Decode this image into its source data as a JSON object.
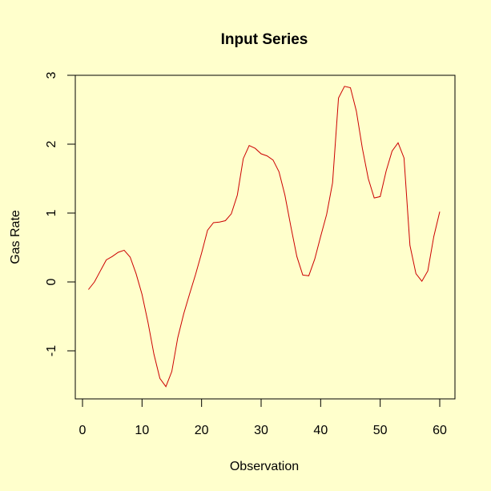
{
  "chart_data": {
    "type": "line",
    "title": "Input Series",
    "xlabel": "Observation",
    "ylabel": "Gas Rate",
    "xlim": [
      0,
      60
    ],
    "ylim": [
      -1.5,
      3
    ],
    "xticks": [
      0,
      10,
      20,
      30,
      40,
      50,
      60
    ],
    "yticks": [
      -1,
      0,
      1,
      2,
      3
    ],
    "xtick_labels": [
      "0",
      "10",
      "20",
      "30",
      "40",
      "50",
      "60"
    ],
    "ytick_labels": [
      "-1",
      "0",
      "1",
      "2",
      "3"
    ],
    "grid": false,
    "series": [
      {
        "color": "#cc0000",
        "x": [
          1,
          2,
          3,
          4,
          5,
          6,
          7,
          8,
          9,
          10,
          11,
          12,
          13,
          14,
          15,
          16,
          17,
          18,
          19,
          20,
          21,
          22,
          23,
          24,
          25,
          26,
          27,
          28,
          29,
          30,
          31,
          32,
          33,
          34,
          35,
          36,
          37,
          38,
          39,
          40,
          41,
          42,
          43,
          44,
          45,
          46,
          47,
          48,
          49,
          50,
          51,
          52,
          53,
          54,
          55,
          56,
          57,
          58,
          59,
          60
        ],
        "y": [
          -0.11,
          0.0,
          0.16,
          0.32,
          0.37,
          0.43,
          0.46,
          0.36,
          0.12,
          -0.18,
          -0.59,
          -1.05,
          -1.4,
          -1.52,
          -1.3,
          -0.81,
          -0.46,
          -0.17,
          0.11,
          0.42,
          0.75,
          0.86,
          0.87,
          0.89,
          0.99,
          1.26,
          1.79,
          1.98,
          1.94,
          1.86,
          1.83,
          1.77,
          1.6,
          1.26,
          0.8,
          0.37,
          0.1,
          0.09,
          0.33,
          0.66,
          0.98,
          1.44,
          2.67,
          2.84,
          2.82,
          2.48,
          1.94,
          1.5,
          1.22,
          1.24,
          1.61,
          1.9,
          2.02,
          1.8,
          0.53,
          0.12,
          0.01,
          0.16,
          0.66,
          1.02
        ]
      }
    ]
  }
}
